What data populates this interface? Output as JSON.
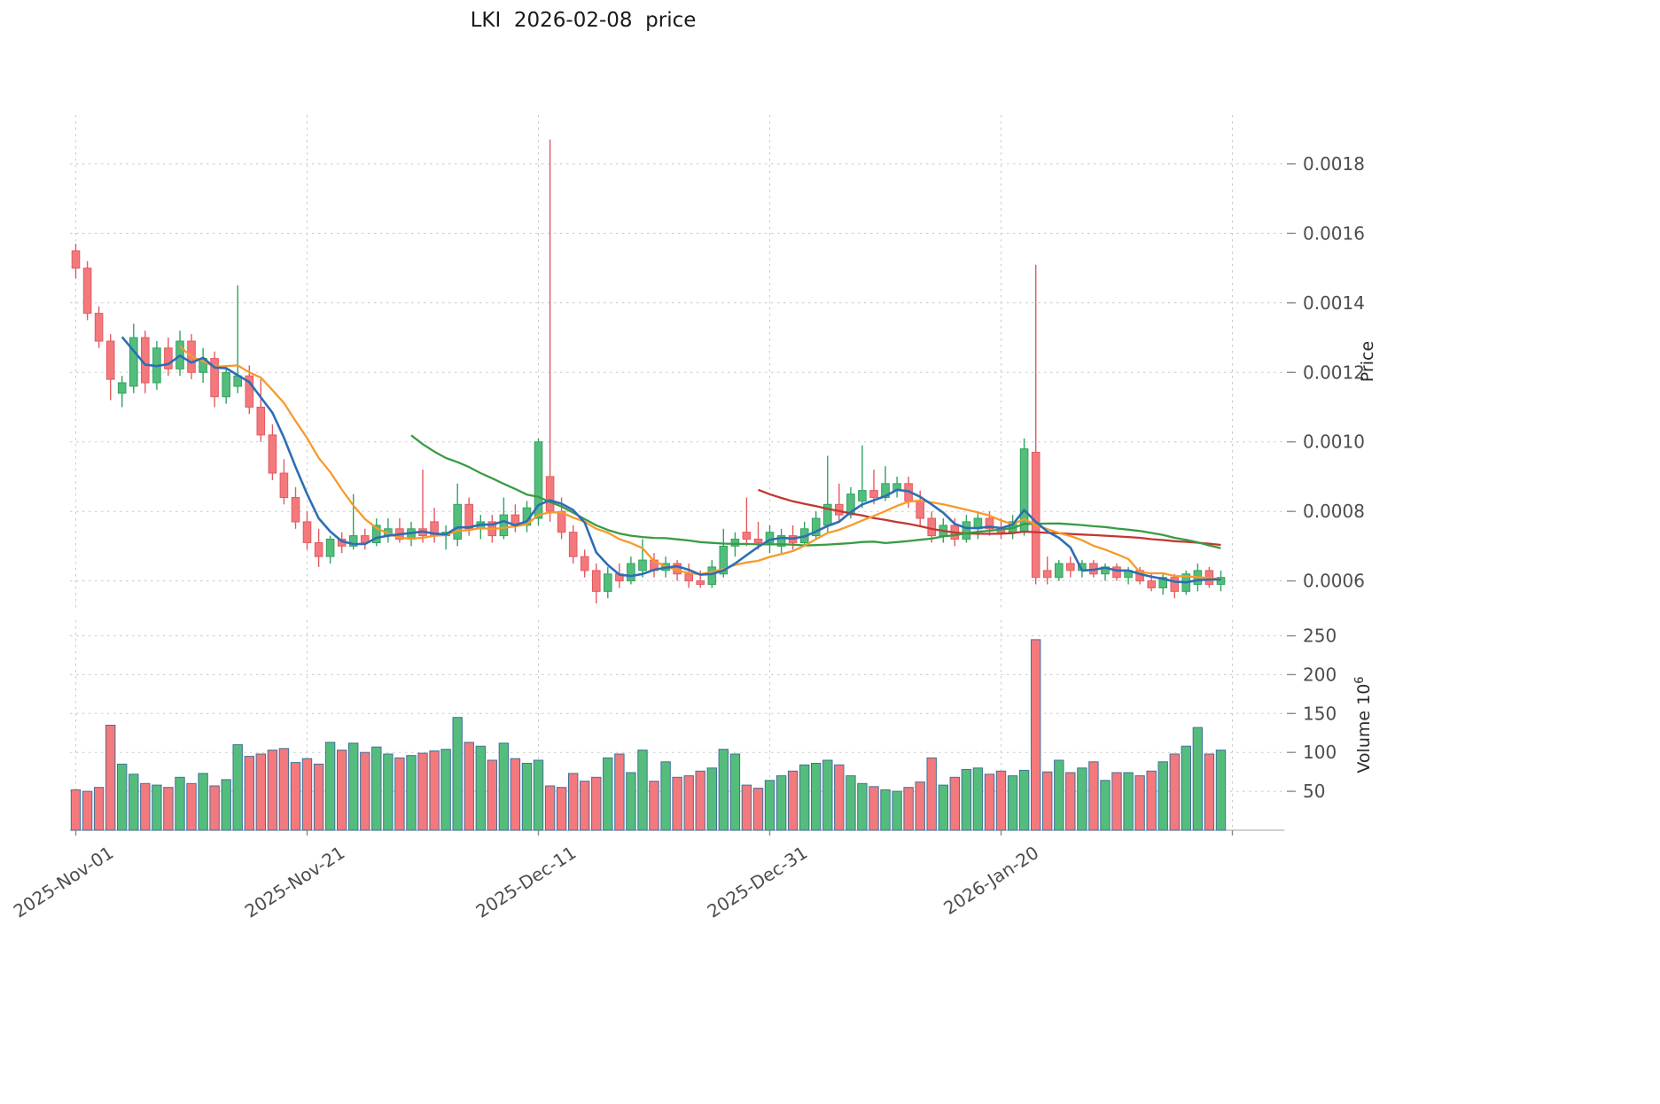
{
  "title": "LKI  2026-02-08  price",
  "colors": {
    "up": "#54bd7c",
    "up_edge": "#2fa35e",
    "down": "#f3797d",
    "down_edge": "#e35a60",
    "volume_edge": "#41719b",
    "grid": "#c9c9c9",
    "tick_text": "#4d4d4d",
    "axis_text": "#2b2b2b"
  },
  "axes": {
    "price": {
      "label": "Price",
      "ticks": [
        0.0006,
        0.0008,
        0.001,
        0.0012,
        0.0014,
        0.0016,
        0.0018
      ]
    },
    "volume": {
      "label": "Volume",
      "base": "10",
      "exponent": "6",
      "ticks": [
        50,
        100,
        150,
        200,
        250
      ]
    },
    "x": {
      "ticks": [
        {
          "index": 0,
          "label": "2025-Nov-01"
        },
        {
          "index": 20,
          "label": "2025-Nov-21"
        },
        {
          "index": 40,
          "label": "2025-Dec-11"
        },
        {
          "index": 60,
          "label": "2025-Dec-31"
        },
        {
          "index": 80,
          "label": "2026-Jan-20"
        },
        {
          "index": 100,
          "label": ""
        }
      ]
    }
  },
  "chart_data": {
    "type": "candlestick",
    "title": "LKI  2026-02-08  price",
    "start_tick_label": "2025-Nov-01",
    "end_date_in_title": "2026-02-08",
    "interval": "daily",
    "price_ylim": [
      0.00052,
      0.00194
    ],
    "volume_ylim": [
      0,
      270
    ],
    "volume_unit": "millions (10^6)",
    "grid": "dashed",
    "candles_format": [
      "open",
      "high",
      "low",
      "close",
      "volume_millions"
    ],
    "candles": [
      [
        0.00155,
        0.00157,
        0.00147,
        0.0015,
        52
      ],
      [
        0.0015,
        0.00152,
        0.00135,
        0.00137,
        50
      ],
      [
        0.00137,
        0.00139,
        0.00127,
        0.00129,
        55
      ],
      [
        0.00129,
        0.00131,
        0.00112,
        0.00118,
        135
      ],
      [
        0.00114,
        0.00119,
        0.0011,
        0.00117,
        85
      ],
      [
        0.00116,
        0.00134,
        0.00114,
        0.0013,
        72
      ],
      [
        0.0013,
        0.00132,
        0.00114,
        0.00117,
        60
      ],
      [
        0.00117,
        0.00129,
        0.00115,
        0.00127,
        58
      ],
      [
        0.00127,
        0.0013,
        0.00119,
        0.00121,
        55
      ],
      [
        0.00121,
        0.00132,
        0.00119,
        0.00129,
        68
      ],
      [
        0.00129,
        0.00131,
        0.00118,
        0.0012,
        60
      ],
      [
        0.0012,
        0.00127,
        0.00117,
        0.00124,
        73
      ],
      [
        0.00124,
        0.00126,
        0.0011,
        0.00113,
        57
      ],
      [
        0.00113,
        0.00122,
        0.00111,
        0.0012,
        65
      ],
      [
        0.00116,
        0.00145,
        0.00114,
        0.00119,
        110
      ],
      [
        0.00119,
        0.00122,
        0.00108,
        0.0011,
        95
      ],
      [
        0.0011,
        0.00118,
        0.001,
        0.00102,
        98
      ],
      [
        0.00102,
        0.00105,
        0.00089,
        0.00091,
        103
      ],
      [
        0.00091,
        0.00095,
        0.00082,
        0.00084,
        105
      ],
      [
        0.00084,
        0.00087,
        0.00075,
        0.00077,
        87
      ],
      [
        0.00077,
        0.0008,
        0.00069,
        0.00071,
        92
      ],
      [
        0.00071,
        0.00075,
        0.00064,
        0.00067,
        85
      ],
      [
        0.00067,
        0.00073,
        0.00065,
        0.00072,
        113
      ],
      [
        0.00072,
        0.00074,
        0.00068,
        0.0007,
        103
      ],
      [
        0.0007,
        0.00085,
        0.00069,
        0.00073,
        112
      ],
      [
        0.00073,
        0.00075,
        0.00069,
        0.00071,
        100
      ],
      [
        0.00071,
        0.00078,
        0.0007,
        0.00076,
        107
      ],
      [
        0.00073,
        0.00078,
        0.00071,
        0.00075,
        98
      ],
      [
        0.00075,
        0.00078,
        0.00071,
        0.00072,
        93
      ],
      [
        0.00072,
        0.00077,
        0.0007,
        0.00075,
        96
      ],
      [
        0.00075,
        0.00092,
        0.00071,
        0.00073,
        99
      ],
      [
        0.00077,
        0.00081,
        0.00071,
        0.00073,
        102
      ],
      [
        0.00073,
        0.00076,
        0.00069,
        0.00074,
        104
      ],
      [
        0.00072,
        0.00088,
        0.0007,
        0.00082,
        145
      ],
      [
        0.00082,
        0.00084,
        0.00073,
        0.00075,
        113
      ],
      [
        0.00075,
        0.00079,
        0.00072,
        0.00077,
        108
      ],
      [
        0.00077,
        0.00079,
        0.00071,
        0.00073,
        90
      ],
      [
        0.00073,
        0.00084,
        0.00072,
        0.00079,
        112
      ],
      [
        0.00079,
        0.00082,
        0.00074,
        0.00076,
        92
      ],
      [
        0.00076,
        0.00083,
        0.00074,
        0.00081,
        86
      ],
      [
        0.00078,
        0.00101,
        0.00076,
        0.001,
        90
      ],
      [
        0.0009,
        0.00187,
        0.00077,
        0.0008,
        57
      ],
      [
        0.0008,
        0.00084,
        0.00072,
        0.00074,
        55
      ],
      [
        0.00074,
        0.00076,
        0.00065,
        0.00067,
        73
      ],
      [
        0.00067,
        0.00069,
        0.00061,
        0.00063,
        63
      ],
      [
        0.00063,
        0.00065,
        0.000535,
        0.00057,
        68
      ],
      [
        0.00057,
        0.00064,
        0.00055,
        0.00062,
        93
      ],
      [
        0.00062,
        0.00065,
        0.00058,
        0.0006,
        98
      ],
      [
        0.0006,
        0.00067,
        0.00059,
        0.00065,
        74
      ],
      [
        0.00063,
        0.00072,
        0.00061,
        0.00066,
        103
      ],
      [
        0.00066,
        0.00068,
        0.00061,
        0.00063,
        63
      ],
      [
        0.00063,
        0.00067,
        0.00061,
        0.00065,
        88
      ],
      [
        0.00065,
        0.00066,
        0.0006,
        0.00062,
        68
      ],
      [
        0.00062,
        0.00065,
        0.00058,
        0.0006,
        70
      ],
      [
        0.0006,
        0.00063,
        0.00058,
        0.00059,
        76
      ],
      [
        0.00059,
        0.00066,
        0.00058,
        0.00064,
        80
      ],
      [
        0.00062,
        0.00075,
        0.00061,
        0.0007,
        104
      ],
      [
        0.0007,
        0.00074,
        0.00067,
        0.00072,
        98
      ],
      [
        0.00074,
        0.00084,
        0.0007,
        0.00072,
        58
      ],
      [
        0.00072,
        0.00077,
        0.00069,
        0.00071,
        54
      ],
      [
        0.00071,
        0.00076,
        0.00068,
        0.00074,
        64
      ],
      [
        0.0007,
        0.00075,
        0.00068,
        0.00073,
        70
      ],
      [
        0.00073,
        0.00076,
        0.00069,
        0.00071,
        76
      ],
      [
        0.00071,
        0.00077,
        0.0007,
        0.00075,
        84
      ],
      [
        0.00073,
        0.0008,
        0.00072,
        0.00078,
        86
      ],
      [
        0.00076,
        0.00096,
        0.00074,
        0.00082,
        90
      ],
      [
        0.00082,
        0.00088,
        0.00077,
        0.00079,
        84
      ],
      [
        0.00079,
        0.00087,
        0.00078,
        0.00085,
        70
      ],
      [
        0.00083,
        0.00099,
        0.00081,
        0.00086,
        60
      ],
      [
        0.00086,
        0.00092,
        0.00082,
        0.00084,
        56
      ],
      [
        0.00084,
        0.00093,
        0.00083,
        0.00088,
        52
      ],
      [
        0.00086,
        0.0009,
        0.00084,
        0.00088,
        50
      ],
      [
        0.00088,
        0.0009,
        0.00081,
        0.00083,
        55
      ],
      [
        0.00083,
        0.00086,
        0.00076,
        0.00078,
        62
      ],
      [
        0.00078,
        0.0008,
        0.00071,
        0.00073,
        93
      ],
      [
        0.00073,
        0.00078,
        0.00071,
        0.00076,
        58
      ],
      [
        0.00076,
        0.00078,
        0.0007,
        0.00072,
        68
      ],
      [
        0.00072,
        0.00079,
        0.00071,
        0.00077,
        78
      ],
      [
        0.00075,
        0.0008,
        0.00072,
        0.00078,
        80
      ],
      [
        0.00078,
        0.0008,
        0.00073,
        0.00075,
        72
      ],
      [
        0.00075,
        0.00078,
        0.00072,
        0.00074,
        76
      ],
      [
        0.00074,
        0.00079,
        0.00072,
        0.00077,
        70
      ],
      [
        0.00074,
        0.00101,
        0.00073,
        0.00098,
        77
      ],
      [
        0.00097,
        0.00151,
        0.00059,
        0.00061,
        245
      ],
      [
        0.00063,
        0.00067,
        0.00059,
        0.00061,
        75
      ],
      [
        0.00061,
        0.00066,
        0.0006,
        0.00065,
        90
      ],
      [
        0.00065,
        0.00067,
        0.00061,
        0.00063,
        74
      ],
      [
        0.00063,
        0.00066,
        0.00061,
        0.00065,
        80
      ],
      [
        0.00065,
        0.00066,
        0.00061,
        0.00062,
        88
      ],
      [
        0.00062,
        0.00065,
        0.0006,
        0.00064,
        64
      ],
      [
        0.00064,
        0.00065,
        0.0006,
        0.00061,
        74
      ],
      [
        0.00061,
        0.00064,
        0.00059,
        0.00063,
        74
      ],
      [
        0.00063,
        0.00064,
        0.00059,
        0.0006,
        70
      ],
      [
        0.0006,
        0.00062,
        0.00057,
        0.00058,
        76
      ],
      [
        0.00058,
        0.00062,
        0.00056,
        0.00061,
        88
      ],
      [
        0.00061,
        0.00062,
        0.00055,
        0.00057,
        98
      ],
      [
        0.00057,
        0.00063,
        0.00056,
        0.00062,
        108
      ],
      [
        0.00059,
        0.00065,
        0.00057,
        0.00063,
        132
      ],
      [
        0.00063,
        0.00064,
        0.00058,
        0.00059,
        98
      ],
      [
        0.00059,
        0.00063,
        0.00057,
        0.00061,
        103
      ]
    ],
    "moving_averages": [
      {
        "name": "SMA5",
        "window": 5,
        "color": "#2e6db5"
      },
      {
        "name": "SMA10",
        "window": 10,
        "color": "#f79a2c"
      },
      {
        "name": "SMA30",
        "window": 30,
        "color": "#3a9b44"
      },
      {
        "name": "SMA60",
        "window": 60,
        "color": "#c23730"
      }
    ]
  }
}
